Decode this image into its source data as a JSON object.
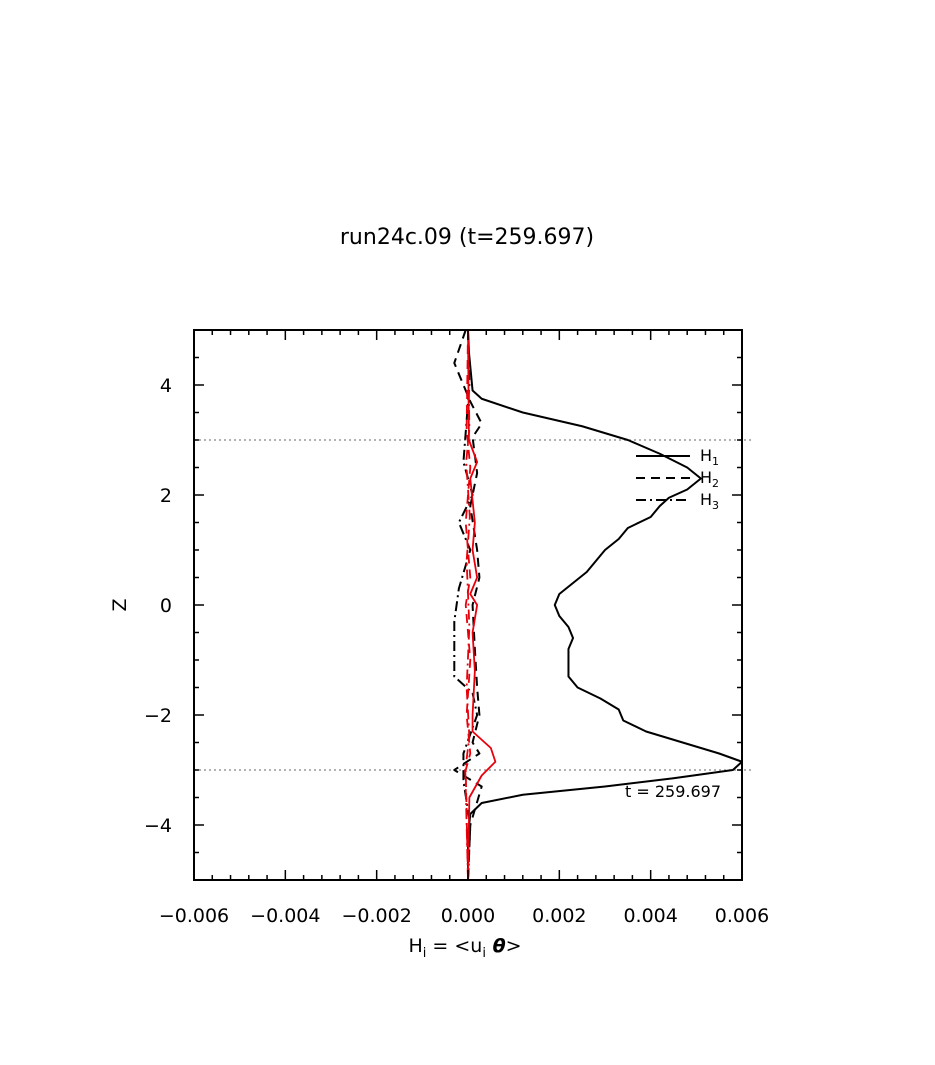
{
  "chart_data": {
    "type": "line",
    "title": "run24c.09 (t=259.697)",
    "xlabel": {
      "base": "H",
      "sub": "i",
      "mid": " = <u",
      "sub2": "i",
      "theta": " θ",
      "end": ">"
    },
    "ylabel": "Z",
    "xlim": [
      -0.006,
      0.006
    ],
    "ylim": [
      -5,
      5
    ],
    "x_ticks": [
      -0.006,
      -0.004,
      -0.002,
      0.0,
      0.002,
      0.004,
      0.006
    ],
    "x_tick_labels": [
      "−0.006",
      "−0.004",
      "−0.002",
      "0.000",
      "0.002",
      "0.004",
      "0.006"
    ],
    "y_ticks": [
      -4,
      -2,
      0,
      2,
      4
    ],
    "y_tick_labels": [
      "−4",
      "−2",
      "0",
      "2",
      "4"
    ],
    "reference_lines_z": [
      3,
      -3
    ],
    "annotation": "t = 259.697",
    "legend": [
      {
        "base": "H",
        "sub": "1",
        "style": "solid"
      },
      {
        "base": "H",
        "sub": "2",
        "style": "dashed"
      },
      {
        "base": "H",
        "sub": "3",
        "style": "dashdot"
      }
    ],
    "series": [
      {
        "legend_index": 0,
        "style": "solid",
        "color": "#000000",
        "points": [
          [
            0,
            5
          ],
          [
            2e-05,
            4.6
          ],
          [
            0.0001,
            3.9
          ],
          [
            0.0003,
            3.75
          ],
          [
            0.0012,
            3.5
          ],
          [
            0.0025,
            3.25
          ],
          [
            0.0035,
            3.0
          ],
          [
            0.0042,
            2.75
          ],
          [
            0.0048,
            2.5
          ],
          [
            0.0051,
            2.3
          ],
          [
            0.0048,
            2.1
          ],
          [
            0.0044,
            1.95
          ],
          [
            0.0042,
            1.8
          ],
          [
            0.004,
            1.6
          ],
          [
            0.0035,
            1.4
          ],
          [
            0.0033,
            1.2
          ],
          [
            0.003,
            1.0
          ],
          [
            0.0028,
            0.8
          ],
          [
            0.0026,
            0.6
          ],
          [
            0.0023,
            0.4
          ],
          [
            0.002,
            0.2
          ],
          [
            0.0019,
            0.0
          ],
          [
            0.002,
            -0.2
          ],
          [
            0.0022,
            -0.4
          ],
          [
            0.0023,
            -0.6
          ],
          [
            0.0022,
            -0.8
          ],
          [
            0.0022,
            -1.0
          ],
          [
            0.0022,
            -1.2
          ],
          [
            0.0022,
            -1.3
          ],
          [
            0.0024,
            -1.5
          ],
          [
            0.0029,
            -1.7
          ],
          [
            0.0033,
            -1.9
          ],
          [
            0.0034,
            -2.1
          ],
          [
            0.0039,
            -2.3
          ],
          [
            0.0047,
            -2.5
          ],
          [
            0.0055,
            -2.7
          ],
          [
            0.006,
            -2.85
          ],
          [
            0.0058,
            -3.0
          ],
          [
            0.0045,
            -3.15
          ],
          [
            0.003,
            -3.3
          ],
          [
            0.0012,
            -3.45
          ],
          [
            0.0003,
            -3.6
          ],
          [
            5e-05,
            -3.8
          ],
          [
            0,
            -4.2
          ],
          [
            0,
            -5
          ]
        ]
      },
      {
        "legend_index": 1,
        "style": "dashed",
        "color": "#000000",
        "points": [
          [
            -5e-05,
            5
          ],
          [
            -0.0003,
            4.4
          ],
          [
            5e-05,
            3.7
          ],
          [
            0.0003,
            3.3
          ],
          [
            0.0001,
            3.05
          ],
          [
            0.0002,
            2.4
          ],
          [
            5e-05,
            1.8
          ],
          [
            0.0002,
            1.0
          ],
          [
            0.00025,
            0.5
          ],
          [
            0.0001,
            0.0
          ],
          [
            0.00015,
            -0.8
          ],
          [
            0.0002,
            -1.5
          ],
          [
            0.00025,
            -2.0
          ],
          [
            0.0001,
            -2.5
          ],
          [
            0.00025,
            -2.7
          ],
          [
            -0.0003,
            -3.0
          ],
          [
            0.0003,
            -3.3
          ],
          [
            5e-05,
            -4.0
          ],
          [
            0,
            -5
          ]
        ]
      },
      {
        "legend_index": 2,
        "style": "dashdot",
        "color": "#000000",
        "points": [
          [
            0,
            5
          ],
          [
            3e-05,
            4.0
          ],
          [
            -0.0001,
            2.6
          ],
          [
            0.0001,
            2.0
          ],
          [
            -0.0002,
            1.5
          ],
          [
            5e-05,
            1.0
          ],
          [
            -0.0002,
            0.3
          ],
          [
            -0.0003,
            -0.3
          ],
          [
            -0.0003,
            -1.3
          ],
          [
            0.0001,
            -1.6
          ],
          [
            0.0002,
            -2.0
          ],
          [
            -0.0001,
            -2.7
          ],
          [
            -0.0001,
            -3.2
          ],
          [
            5e-05,
            -4.0
          ],
          [
            0,
            -5
          ]
        ]
      },
      {
        "style": "solid",
        "color": "#e8000b",
        "points": [
          [
            0,
            5
          ],
          [
            1e-05,
            4.0
          ],
          [
            2e-05,
            3.0
          ],
          [
            0.0002,
            2.6
          ],
          [
            5e-05,
            2.3
          ],
          [
            0.00015,
            1.5
          ],
          [
            0.0001,
            1.0
          ],
          [
            0.0002,
            0.5
          ],
          [
            5e-05,
            0.2
          ],
          [
            0.0002,
            0.0
          ],
          [
            0.0001,
            -0.5
          ],
          [
            0.00015,
            -1.2
          ],
          [
            0.0001,
            -2.0
          ],
          [
            0.0001,
            -2.3
          ],
          [
            0.0005,
            -2.6
          ],
          [
            0.0006,
            -2.85
          ],
          [
            0.0003,
            -3.1
          ],
          [
            3e-05,
            -3.5
          ],
          [
            0,
            -5
          ]
        ]
      },
      {
        "style": "dashed",
        "color": "#e8000b",
        "points": [
          [
            0,
            5
          ],
          [
            -3e-05,
            3.2
          ],
          [
            5e-05,
            2.5
          ],
          [
            -5e-05,
            1.5
          ],
          [
            5e-05,
            0.5
          ],
          [
            -5e-05,
            0.0
          ],
          [
            5e-05,
            -1.0
          ],
          [
            -3e-05,
            -2.0
          ],
          [
            5e-05,
            -2.7
          ],
          [
            -5e-05,
            -3.0
          ],
          [
            0,
            -5
          ]
        ]
      },
      {
        "style": "dashdot",
        "color": "#e8000b",
        "points": [
          [
            0,
            5
          ],
          [
            3e-05,
            3.2
          ],
          [
            -4e-05,
            2.6
          ],
          [
            4e-05,
            1.6
          ],
          [
            -3e-05,
            0.8
          ],
          [
            3e-05,
            -0.4
          ],
          [
            -3e-05,
            -1.5
          ],
          [
            3e-05,
            -2.4
          ],
          [
            -6e-05,
            -3.0
          ],
          [
            0,
            -5
          ]
        ]
      }
    ]
  }
}
